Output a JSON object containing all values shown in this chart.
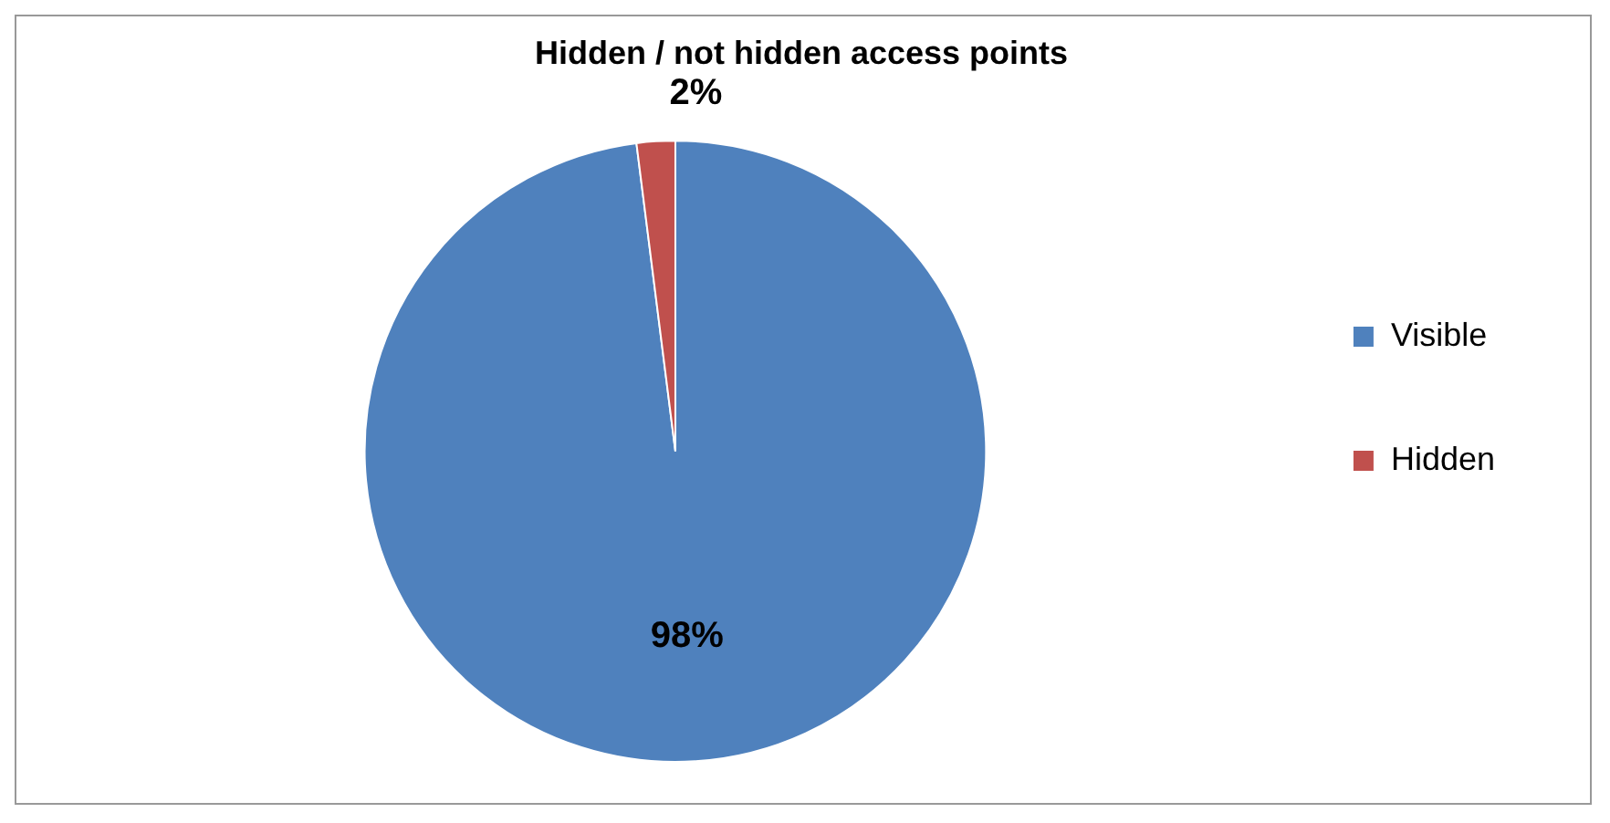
{
  "chart_data": {
    "type": "pie",
    "title": "Hidden / not hidden access points",
    "categories": [
      "Visible",
      "Hidden"
    ],
    "values": [
      98,
      2
    ],
    "colors": [
      "#4f81bd",
      "#c0504d"
    ],
    "value_labels": [
      "98%",
      "2%"
    ],
    "legend": "right"
  }
}
